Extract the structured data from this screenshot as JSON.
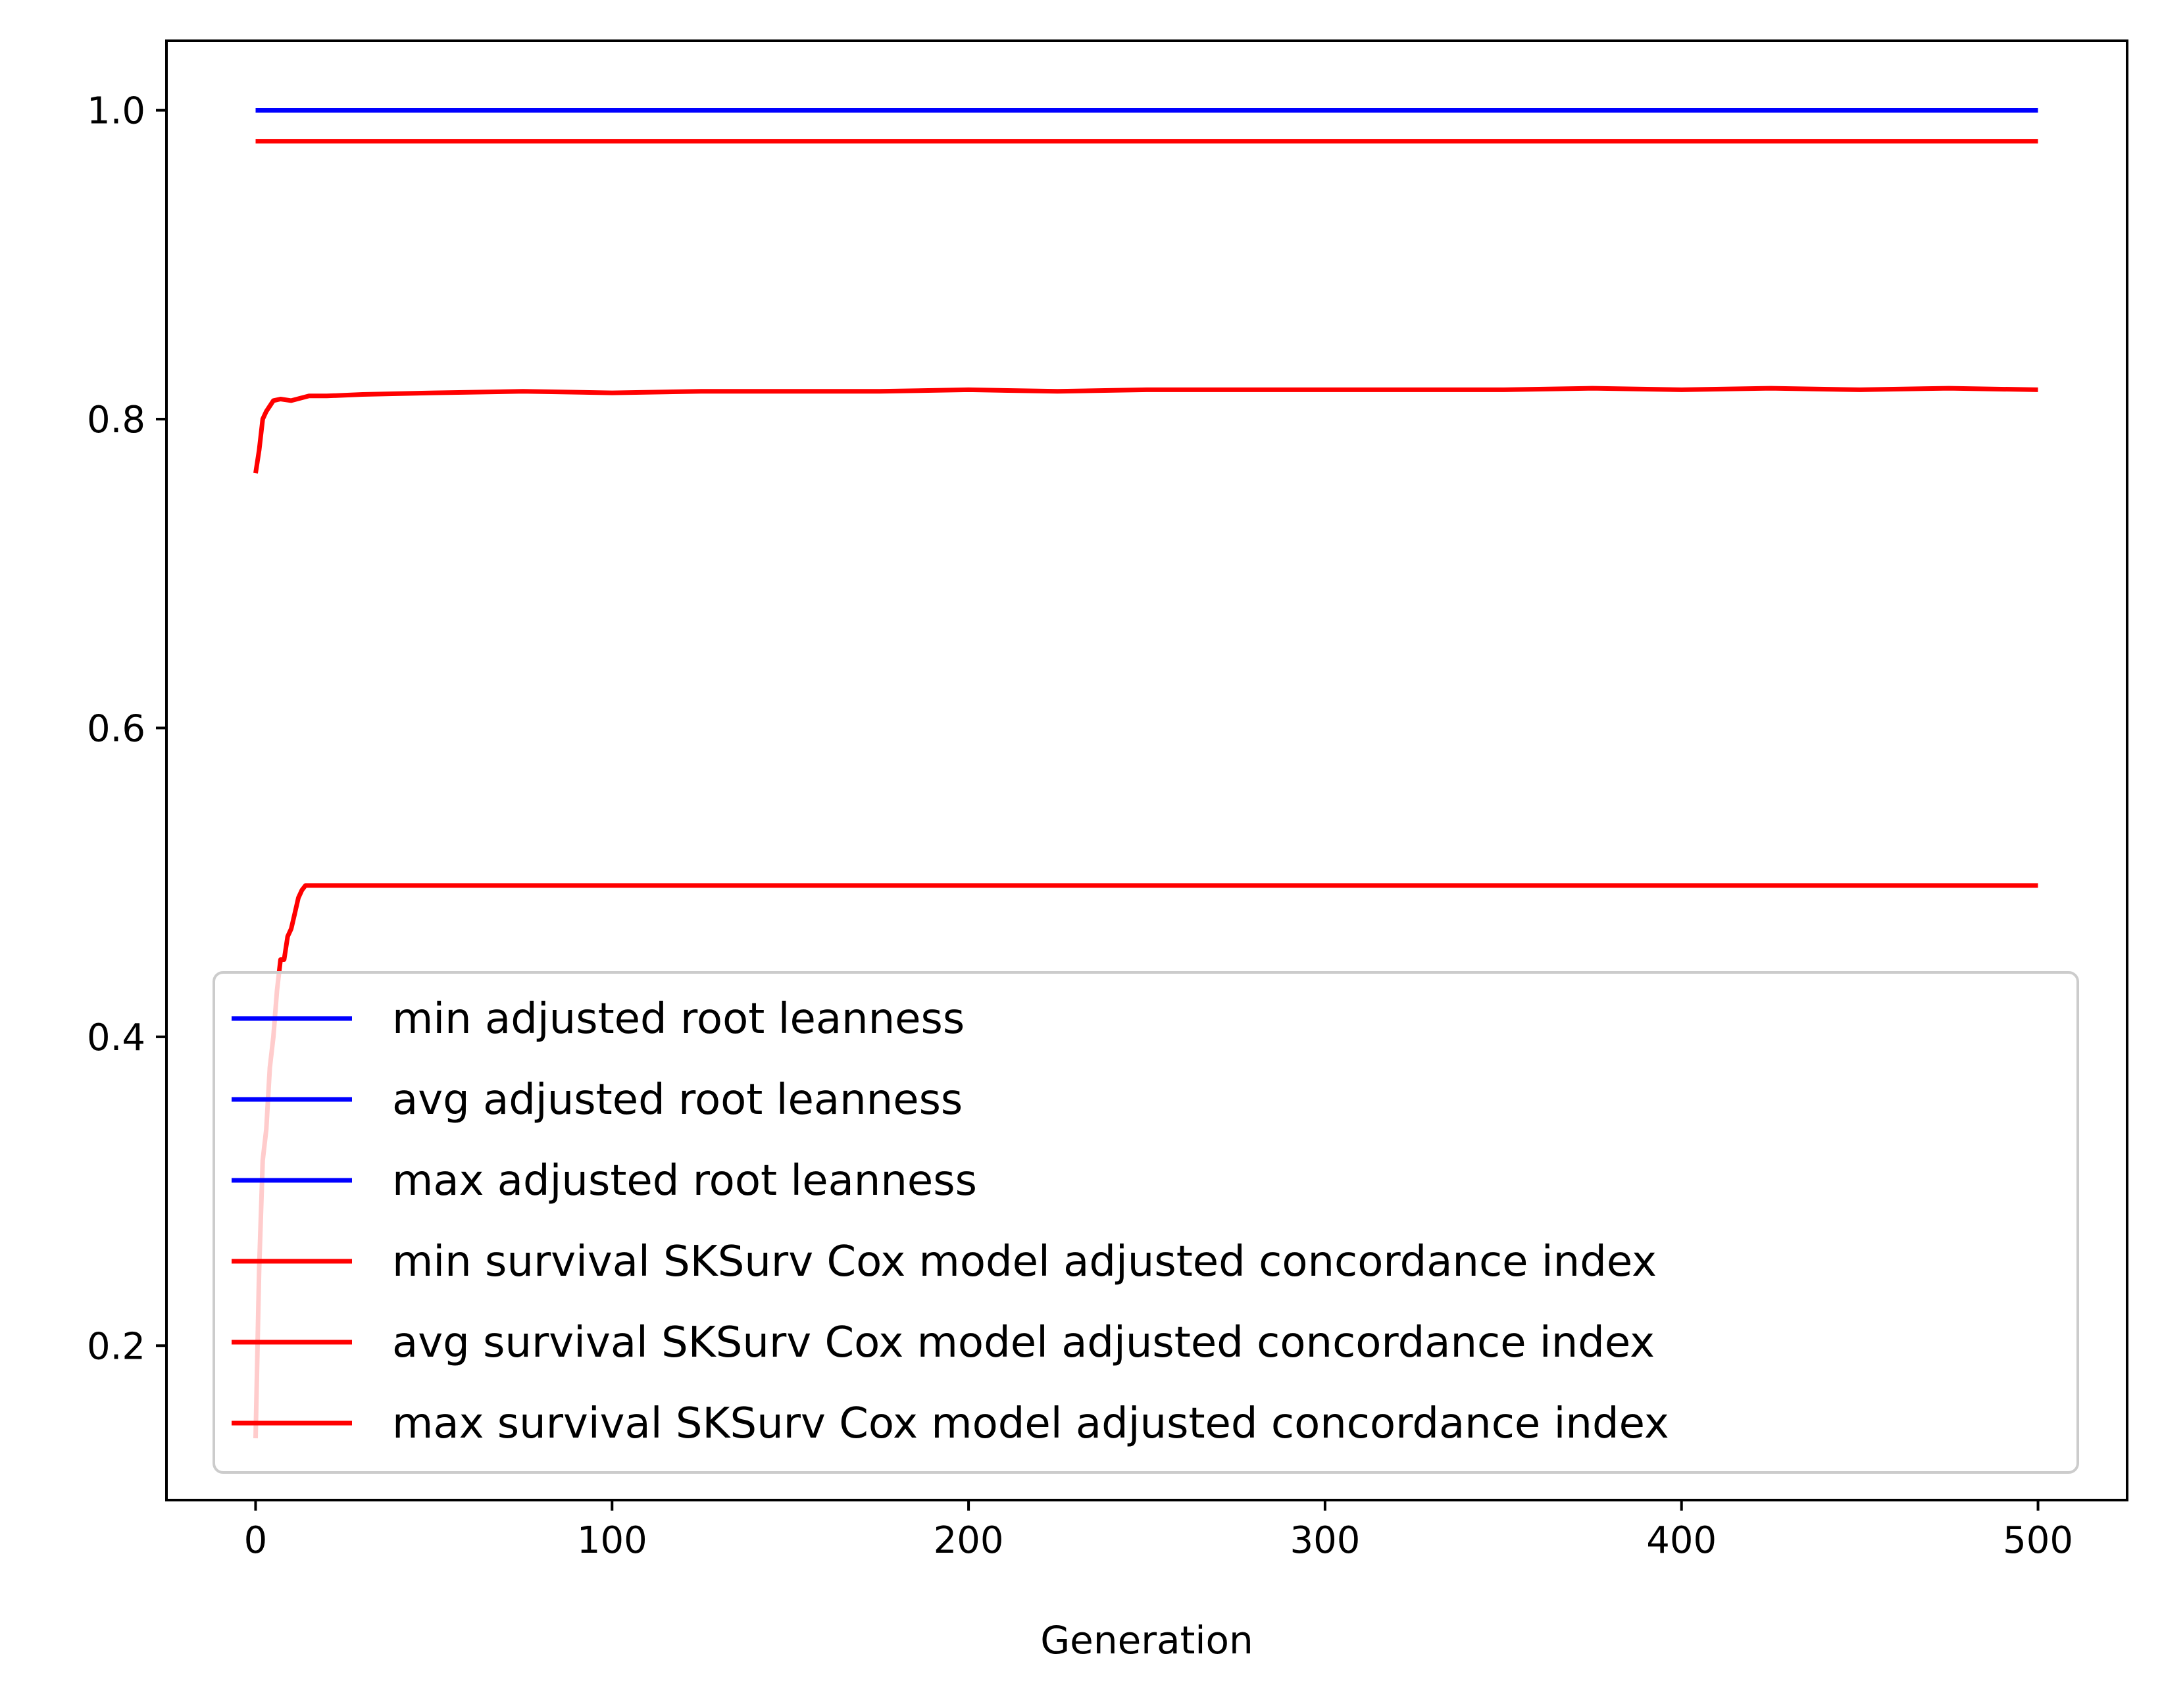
{
  "chart_data": {
    "type": "line",
    "title": "",
    "xlabel": "Generation",
    "ylabel": "",
    "xlim": [
      -25,
      525
    ],
    "ylim": [
      0.1,
      1.045
    ],
    "xticks": [
      {
        "value": 0,
        "label": "0"
      },
      {
        "value": 100,
        "label": "100"
      },
      {
        "value": 200,
        "label": "200"
      },
      {
        "value": 300,
        "label": "300"
      },
      {
        "value": 400,
        "label": "400"
      },
      {
        "value": 500,
        "label": "500"
      }
    ],
    "yticks": [
      {
        "value": 0.2,
        "label": "0.2"
      },
      {
        "value": 0.4,
        "label": "0.4"
      },
      {
        "value": 0.6,
        "label": "0.6"
      },
      {
        "value": 0.8,
        "label": "0.8"
      },
      {
        "value": 1.0,
        "label": "1.0"
      }
    ],
    "grid": false,
    "legend_position": "lower-left",
    "series": [
      {
        "name": "min adjusted root leanness",
        "color": "#0000ff",
        "x": [
          0,
          500
        ],
        "y": [
          1.0,
          1.0
        ]
      },
      {
        "name": "avg adjusted root leanness",
        "color": "#0000ff",
        "x": [
          0,
          500
        ],
        "y": [
          1.0,
          1.0
        ]
      },
      {
        "name": "max adjusted root leanness",
        "color": "#0000ff",
        "x": [
          0,
          500
        ],
        "y": [
          1.0,
          1.0
        ]
      },
      {
        "name": "min survival SKSurv Cox model adjusted concordance index",
        "color": "#ff0000",
        "x": [
          0,
          1,
          2,
          3,
          4,
          5,
          6,
          7,
          8,
          9,
          10,
          11,
          12,
          13,
          14,
          16,
          20,
          50,
          100,
          200,
          300,
          400,
          500
        ],
        "y": [
          0.14,
          0.25,
          0.32,
          0.34,
          0.38,
          0.4,
          0.43,
          0.45,
          0.45,
          0.465,
          0.47,
          0.48,
          0.49,
          0.495,
          0.498,
          0.498,
          0.498,
          0.498,
          0.498,
          0.498,
          0.498,
          0.498,
          0.498
        ]
      },
      {
        "name": "avg survival SKSurv Cox model adjusted concordance index",
        "color": "#ff0000",
        "x": [
          0,
          1,
          2,
          3,
          5,
          7,
          10,
          15,
          20,
          30,
          50,
          75,
          100,
          125,
          150,
          175,
          200,
          225,
          250,
          275,
          300,
          325,
          350,
          375,
          400,
          425,
          450,
          475,
          500
        ],
        "y": [
          0.765,
          0.78,
          0.8,
          0.805,
          0.812,
          0.813,
          0.812,
          0.815,
          0.815,
          0.816,
          0.817,
          0.818,
          0.817,
          0.818,
          0.818,
          0.818,
          0.819,
          0.818,
          0.819,
          0.819,
          0.819,
          0.819,
          0.819,
          0.82,
          0.819,
          0.82,
          0.819,
          0.82,
          0.819
        ]
      },
      {
        "name": "max survival SKSurv Cox model adjusted concordance index",
        "color": "#ff0000",
        "x": [
          0,
          500
        ],
        "y": [
          0.98,
          0.98
        ]
      }
    ]
  }
}
